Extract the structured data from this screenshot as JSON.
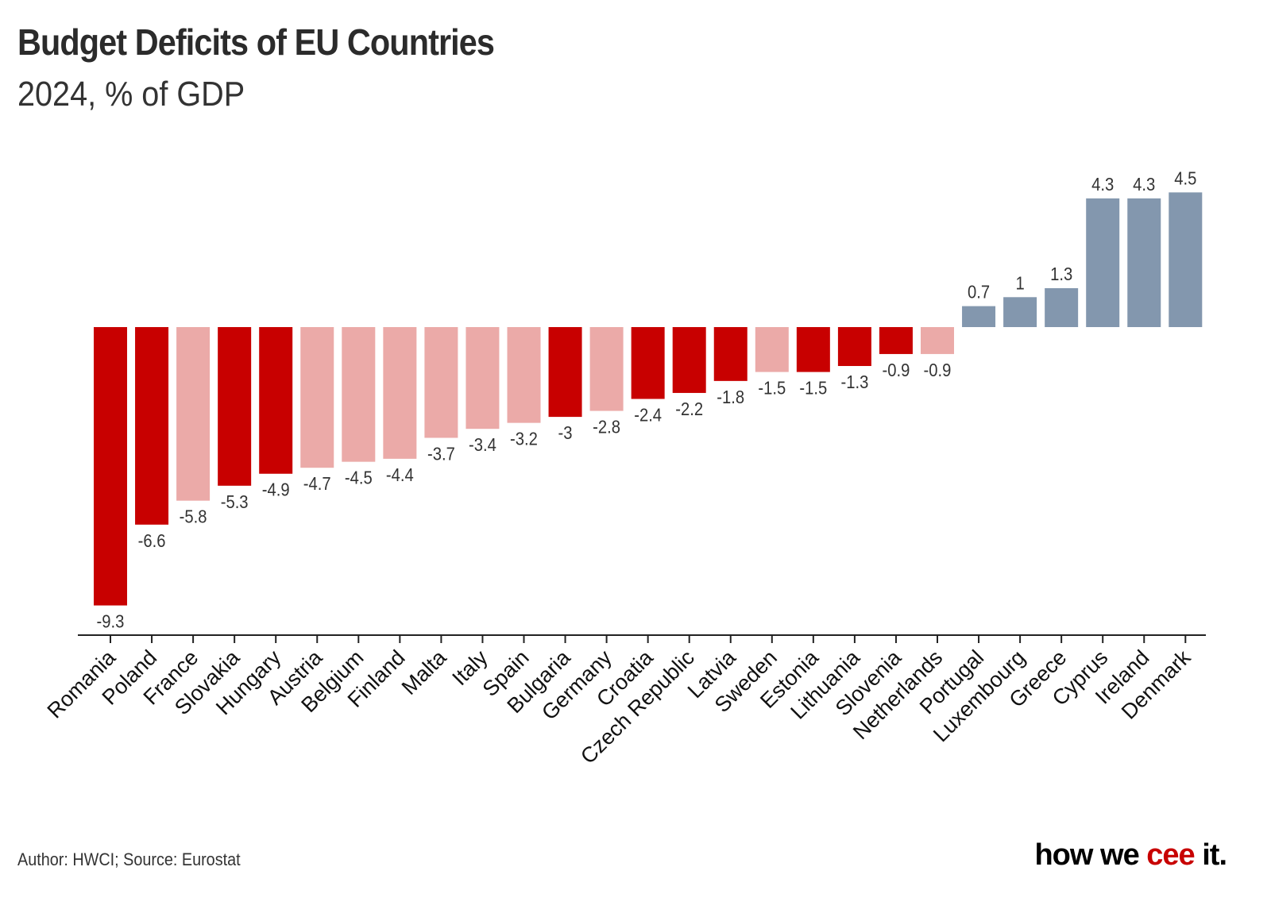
{
  "header": {
    "title": "Budget Deficits of EU Countries",
    "subtitle": "2024, % of GDP"
  },
  "footer": {
    "source": "Author: HWCI; Source: Eurostat",
    "logo_part1": "how we ",
    "logo_accent": "cee",
    "logo_part2": " it."
  },
  "colors": {
    "dark": "#c80000",
    "light": "#ebaaa8",
    "positive": "#8397ae",
    "text": "#333333"
  },
  "chart_data": {
    "type": "bar",
    "title": "Budget Deficits of EU Countries",
    "subtitle": "2024, % of GDP",
    "xlabel": "",
    "ylabel": "",
    "ylim": [
      -10.3,
      4.5
    ],
    "grid": false,
    "categories": [
      "Romania",
      "Poland",
      "France",
      "Slovakia",
      "Hungary",
      "Austria",
      "Belgium",
      "Finland",
      "Malta",
      "Italy",
      "Spain",
      "Bulgaria",
      "Germany",
      "Croatia",
      "Czech Republic",
      "Latvia",
      "Sweden",
      "Estonia",
      "Lithuania",
      "Slovenia",
      "Netherlands",
      "Portugal",
      "Luxembourg",
      "Greece",
      "Cyprus",
      "Ireland",
      "Denmark"
    ],
    "values": [
      -9.3,
      -6.6,
      -5.8,
      -5.3,
      -4.9,
      -4.7,
      -4.5,
      -4.4,
      -3.7,
      -3.4,
      -3.2,
      -3,
      -2.8,
      -2.4,
      -2.2,
      -1.8,
      -1.5,
      -1.5,
      -1.3,
      -0.9,
      -0.9,
      0.7,
      1,
      1.3,
      4.3,
      4.3,
      4.5
    ],
    "labels": [
      "-9.3",
      "-6.6",
      "-5.8",
      "-5.3",
      "-4.9",
      "-4.7",
      "-4.5",
      "-4.4",
      "-3.7",
      "-3.4",
      "-3.2",
      "-3",
      "-2.8",
      "-2.4",
      "-2.2",
      "-1.8",
      "-1.5",
      "-1.5",
      "-1.3",
      "-0.9",
      "-0.9",
      "0.7",
      "1",
      "1.3",
      "4.3",
      "4.3",
      "4.5"
    ],
    "color_group": [
      "dark",
      "dark",
      "light",
      "dark",
      "dark",
      "light",
      "light",
      "light",
      "light",
      "light",
      "light",
      "dark",
      "light",
      "dark",
      "dark",
      "dark",
      "light",
      "dark",
      "dark",
      "dark",
      "light",
      "positive",
      "positive",
      "positive",
      "positive",
      "positive",
      "positive"
    ]
  }
}
